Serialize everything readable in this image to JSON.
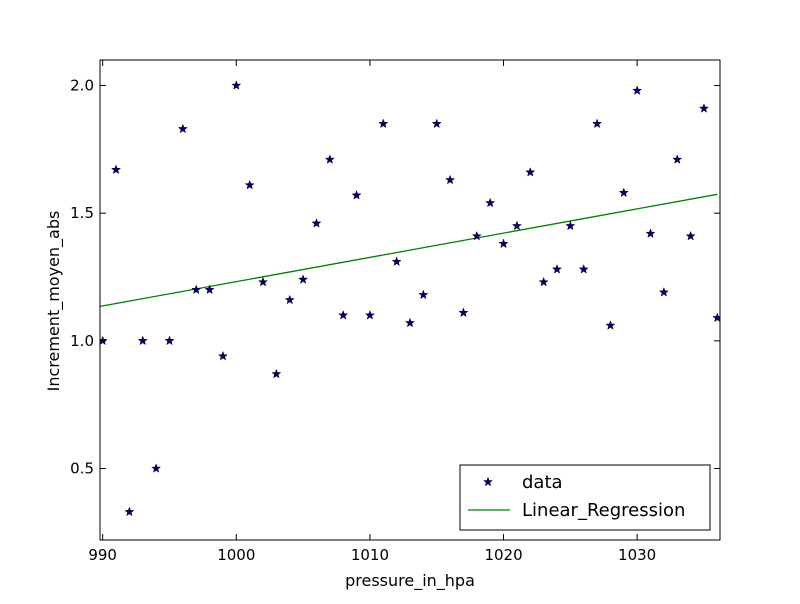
{
  "chart_data": {
    "type": "scatter",
    "title": "",
    "xlabel": "pressure_in_hpa",
    "ylabel": "Increment_moyen_abs",
    "xlim": [
      989.8,
      1036.2
    ],
    "ylim": [
      0.22,
      2.1
    ],
    "xticks": [
      990,
      1000,
      1010,
      1020,
      1030
    ],
    "yticks": [
      0.5,
      1.0,
      1.5,
      2.0
    ],
    "xtick_labels": [
      "990",
      "1000",
      "1010",
      "1020",
      "1030"
    ],
    "ytick_labels": [
      "0.5",
      "1.0",
      "1.5",
      "2.0"
    ],
    "grid": false,
    "legend_position": "lower-right",
    "series": [
      {
        "name": "data",
        "kind": "scatter",
        "marker": "star",
        "color": "#000080",
        "points": [
          [
            990,
            1.0
          ],
          [
            991,
            1.67
          ],
          [
            992,
            0.33
          ],
          [
            993,
            1.0
          ],
          [
            994,
            0.5
          ],
          [
            995,
            1.0
          ],
          [
            996,
            1.83
          ],
          [
            997,
            1.2
          ],
          [
            998,
            1.2
          ],
          [
            999,
            0.94
          ],
          [
            1000,
            2.0
          ],
          [
            1001,
            1.61
          ],
          [
            1002,
            1.23
          ],
          [
            1003,
            0.87
          ],
          [
            1004,
            1.16
          ],
          [
            1005,
            1.24
          ],
          [
            1006,
            1.46
          ],
          [
            1007,
            1.71
          ],
          [
            1008,
            1.1
          ],
          [
            1009,
            1.57
          ],
          [
            1010,
            1.1
          ],
          [
            1011,
            1.85
          ],
          [
            1012,
            1.31
          ],
          [
            1013,
            1.07
          ],
          [
            1014,
            1.18
          ],
          [
            1015,
            1.85
          ],
          [
            1016,
            1.63
          ],
          [
            1017,
            1.11
          ],
          [
            1018,
            1.41
          ],
          [
            1019,
            1.54
          ],
          [
            1020,
            1.38
          ],
          [
            1021,
            1.45
          ],
          [
            1022,
            1.66
          ],
          [
            1023,
            1.23
          ],
          [
            1024,
            1.28
          ],
          [
            1025,
            1.45
          ],
          [
            1026,
            1.28
          ],
          [
            1027,
            1.85
          ],
          [
            1028,
            1.06
          ],
          [
            1029,
            1.58
          ],
          [
            1030,
            1.98
          ],
          [
            1031,
            1.42
          ],
          [
            1032,
            1.19
          ],
          [
            1033,
            1.71
          ],
          [
            1034,
            1.41
          ],
          [
            1035,
            1.91
          ],
          [
            1036,
            1.09
          ]
        ]
      },
      {
        "name": "Linear_Regression",
        "kind": "line",
        "color": "#008000",
        "x": [
          989.8,
          1036.0
        ],
        "y": [
          1.135,
          1.574
        ]
      }
    ]
  }
}
